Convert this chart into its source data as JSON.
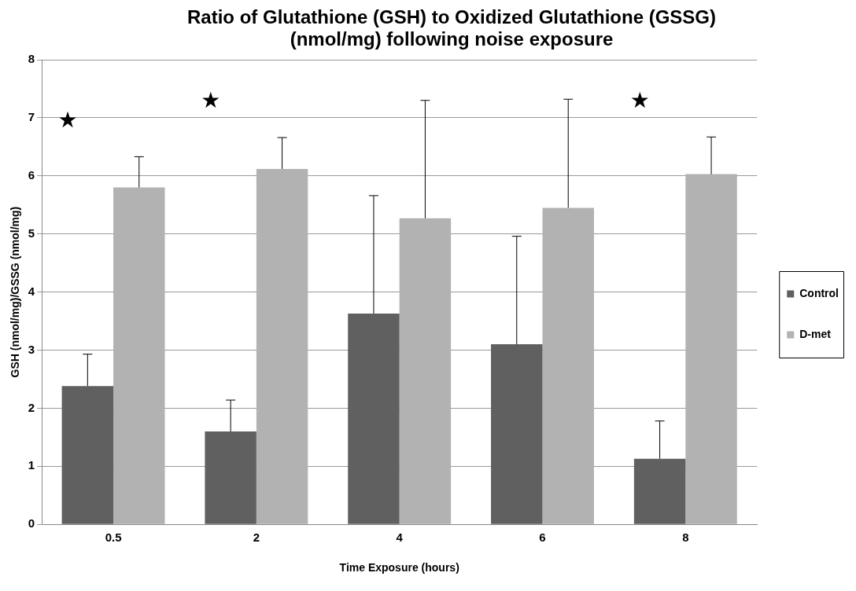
{
  "chart_data": {
    "type": "bar",
    "title": "Ratio of Glutathione (GSH) to Oxidized Glutathione (GSSG) (nmol/mg) following noise exposure",
    "xlabel": "Time Exposure (hours)",
    "ylabel": "GSH (nmol/mg)/GSSG (nmol/mg)",
    "categories": [
      "0.5",
      "2",
      "4",
      "6",
      "8"
    ],
    "series": [
      {
        "name": "Control",
        "color": "#606060",
        "values": [
          2.38,
          1.6,
          3.63,
          3.1,
          1.13
        ],
        "errors": [
          [
            2.38,
            2.93
          ],
          [
            1.6,
            2.14
          ],
          [
            3.63,
            5.66
          ],
          [
            3.1,
            4.96
          ],
          [
            1.13,
            1.78
          ]
        ]
      },
      {
        "name": "D-met",
        "color": "#b2b2b2",
        "values": [
          5.8,
          6.12,
          5.27,
          5.45,
          6.03
        ],
        "errors": [
          [
            5.8,
            6.33
          ],
          [
            6.12,
            6.66
          ],
          [
            5.27,
            7.3
          ],
          [
            5.45,
            7.32
          ],
          [
            6.03,
            6.67
          ]
        ]
      }
    ],
    "ylim": [
      0,
      8
    ],
    "yticks": [
      0,
      1,
      2,
      3,
      4,
      5,
      6,
      7,
      8
    ],
    "grid": "y",
    "legend": "right",
    "annotations": [
      "★",
      "★",
      "★"
    ]
  }
}
